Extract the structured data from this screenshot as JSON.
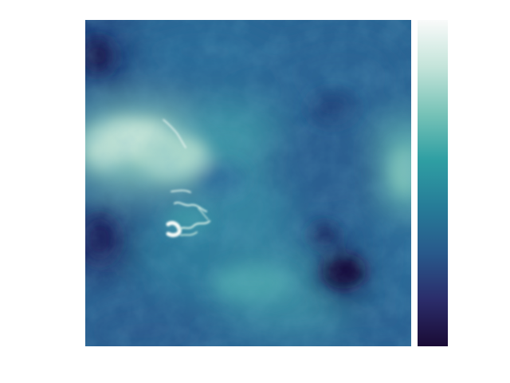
{
  "chart_data": {
    "type": "heatmap",
    "title": "",
    "xlabel": "",
    "ylabel": "",
    "grid": false,
    "colormap": "ice",
    "colormap_stops": [
      "#1a0b35",
      "#2b2d6b",
      "#28598b",
      "#267c98",
      "#2f9fa3",
      "#78c3b8",
      "#c4e4da",
      "#f9fafa"
    ],
    "colorbar": {
      "placement": "right",
      "ticks_shown": false
    },
    "value_range": [
      0,
      1
    ]
  }
}
